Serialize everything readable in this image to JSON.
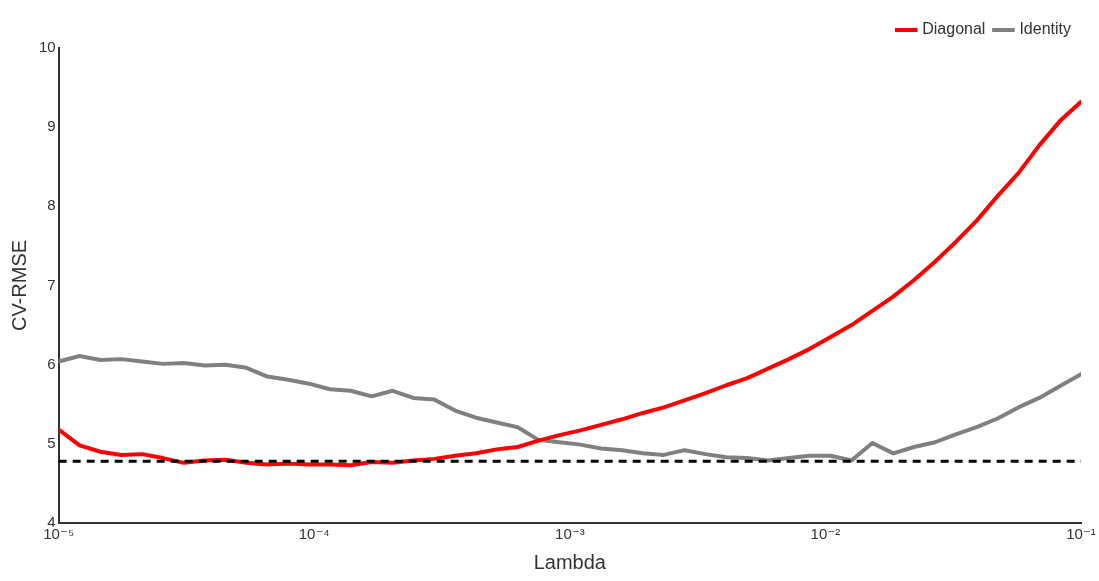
{
  "chart_data": {
    "type": "line",
    "xlabel": "Lambda",
    "ylabel": "CV-RMSE",
    "x": [
      1e-05,
      1.207e-05,
      1.456e-05,
      1.758e-05,
      2.121e-05,
      2.56e-05,
      3.089e-05,
      3.728e-05,
      4.498e-05,
      5.429e-05,
      6.551e-05,
      7.906e-05,
      9.541e-05,
      0.0001151,
      0.0001389,
      0.0001677,
      0.0002024,
      0.0002442,
      0.0002947,
      0.0003556,
      0.0004292,
      0.0005179,
      0.0006251,
      0.0007543,
      0.0009103,
      0.001099,
      0.001326,
      0.0016,
      0.001931,
      0.00233,
      0.002812,
      0.003393,
      0.004095,
      0.004942,
      0.005964,
      0.007197,
      0.008685,
      0.01048,
      0.01265,
      0.01526,
      0.01842,
      0.02223,
      0.02683,
      0.03237,
      0.03907,
      0.04715,
      0.0569,
      0.06866,
      0.08286,
      0.1
    ],
    "series": [
      {
        "name": "Diagonal",
        "color": "#ff0000",
        "values": [
          5.18,
          4.98,
          4.9,
          4.86,
          4.87,
          4.82,
          4.76,
          4.79,
          4.8,
          4.76,
          4.74,
          4.75,
          4.74,
          4.74,
          4.73,
          4.77,
          4.76,
          4.79,
          4.81,
          4.85,
          4.88,
          4.93,
          4.96,
          5.04,
          5.11,
          5.17,
          5.24,
          5.31,
          5.39,
          5.46,
          5.55,
          5.64,
          5.74,
          5.83,
          5.95,
          6.07,
          6.2,
          6.35,
          6.5,
          6.68,
          6.86,
          7.07,
          7.3,
          7.55,
          7.82,
          8.13,
          8.42,
          8.77,
          9.08,
          9.32
        ]
      },
      {
        "name": "Identity",
        "color": "#808080",
        "values": [
          6.04,
          6.11,
          6.06,
          6.07,
          6.04,
          6.01,
          6.02,
          5.99,
          6.0,
          5.96,
          5.85,
          5.81,
          5.76,
          5.69,
          5.67,
          5.6,
          5.67,
          5.58,
          5.56,
          5.42,
          5.33,
          5.27,
          5.21,
          5.05,
          5.02,
          4.99,
          4.94,
          4.92,
          4.88,
          4.86,
          4.92,
          4.87,
          4.83,
          4.82,
          4.79,
          4.82,
          4.85,
          4.85,
          4.79,
          5.01,
          4.88,
          4.96,
          5.02,
          5.12,
          5.21,
          5.32,
          5.46,
          5.58,
          5.73,
          5.88
        ]
      }
    ],
    "log": "x",
    "xlim": [
      1e-05,
      0.1
    ],
    "xticks": [
      {
        "value": 1e-05,
        "label": "10⁻⁵"
      },
      {
        "value": 0.0001,
        "label": "10⁻⁴"
      },
      {
        "value": 0.001,
        "label": "10⁻³"
      },
      {
        "value": 0.01,
        "label": "10⁻²"
      },
      {
        "value": 0.1,
        "label": "10⁻¹"
      }
    ],
    "ylim": [
      4,
      10
    ],
    "yticks": [
      4,
      5,
      6,
      7,
      8,
      9,
      10
    ],
    "ref_lines": [
      {
        "axis": "y",
        "value": 4.78,
        "color": "#000000",
        "line_style": "dashed"
      }
    ],
    "grid": false,
    "legend": "top right",
    "marker": "none",
    "line_style": "solid"
  }
}
